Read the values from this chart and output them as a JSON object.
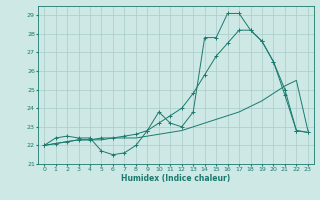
{
  "xlabel": "Humidex (Indice chaleur)",
  "xlim": [
    -0.5,
    23.5
  ],
  "ylim": [
    21.0,
    29.5
  ],
  "yticks": [
    21,
    22,
    23,
    24,
    25,
    26,
    27,
    28,
    29
  ],
  "xticks": [
    0,
    1,
    2,
    3,
    4,
    5,
    6,
    7,
    8,
    9,
    10,
    11,
    12,
    13,
    14,
    15,
    16,
    17,
    18,
    19,
    20,
    21,
    22,
    23
  ],
  "bg_color": "#cde8e5",
  "grid_color": "#aaccca",
  "line_color": "#1a7a6e",
  "line1_y": [
    22.0,
    22.4,
    22.5,
    22.4,
    22.4,
    21.7,
    21.5,
    21.6,
    22.0,
    22.8,
    23.8,
    23.2,
    23.0,
    23.8,
    27.8,
    27.8,
    29.1,
    29.1,
    28.2,
    27.6,
    26.5,
    24.7,
    22.8,
    22.7
  ],
  "line2_y": [
    22.0,
    22.1,
    22.2,
    22.3,
    22.3,
    22.3,
    22.4,
    22.4,
    22.4,
    22.5,
    22.6,
    22.7,
    22.8,
    23.0,
    23.2,
    23.4,
    23.6,
    23.8,
    24.1,
    24.4,
    24.8,
    25.2,
    25.5,
    22.8
  ],
  "line3_y": [
    22.0,
    22.1,
    22.2,
    22.3,
    22.3,
    22.4,
    22.4,
    22.5,
    22.6,
    22.8,
    23.2,
    23.6,
    24.0,
    24.8,
    25.8,
    26.8,
    27.5,
    28.2,
    28.2,
    27.6,
    26.5,
    25.0,
    22.8,
    22.7
  ]
}
